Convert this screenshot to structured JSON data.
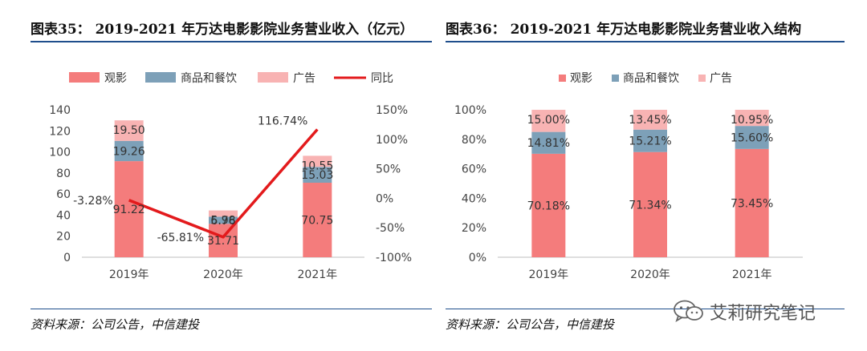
{
  "figures": {
    "left_title": "图表35： 2019-2021 年万达电影影院业务营业收入（亿元）",
    "right_title": "图表36： 2019-2021 年万达电影影院业务营业收入结构",
    "left_source": "资料来源：公司公告，中信建投",
    "right_source": "资料来源：公司公告，中信建投"
  },
  "watermark": {
    "text": "艾莉研究笔记",
    "icon": "wechat-icon"
  },
  "colors": {
    "box_office": "#f47c7c",
    "food_beverage": "#7da0b8",
    "advertising": "#f8b3b3",
    "yoy_line": "#e31a1c",
    "rule": "#1f4e8c"
  },
  "chart_data": [
    {
      "type": "bar",
      "stacked": true,
      "title": "2019-2021 年万达电影影院业务营业收入（亿元）",
      "categories": [
        "2019年",
        "2020年",
        "2021年"
      ],
      "series": [
        {
          "name": "观影",
          "values": [
            91.22,
            31.71,
            70.75
          ],
          "color": "#f47c7c"
        },
        {
          "name": "商品和餐饮",
          "values": [
            19.26,
            6.76,
            15.03
          ],
          "color": "#7da0b8"
        },
        {
          "name": "广告",
          "values": [
            19.5,
            5.98,
            10.55
          ],
          "color": "#f8b3b3"
        }
      ],
      "line_series": {
        "name": "同比",
        "values": [
          -3.28,
          -65.81,
          116.74
        ],
        "axis": "right",
        "color": "#e31a1c"
      },
      "labels": {
        "stack": [
          [
            "91.22",
            "19.26",
            "19.50"
          ],
          [
            "31.71",
            "6.76",
            "5.98"
          ],
          [
            "70.75",
            "15.03",
            "10.55"
          ]
        ],
        "yoy": [
          "-3.28%",
          "-65.81%",
          "116.74%"
        ]
      },
      "ylim": [
        0,
        140
      ],
      "yticks": [
        "0",
        "20",
        "40",
        "60",
        "80",
        "100",
        "120",
        "140"
      ],
      "y2lim": [
        -100,
        150
      ],
      "y2ticks": [
        "-100%",
        "-50%",
        "0%",
        "50%",
        "100%",
        "150%"
      ],
      "legend": "top",
      "grid": false
    },
    {
      "type": "bar",
      "stacked": true,
      "title": "2019-2021 年万达电影影院业务营业收入结构",
      "categories": [
        "2019年",
        "2020年",
        "2021年"
      ],
      "series": [
        {
          "name": "观影",
          "values": [
            70.18,
            71.34,
            73.45
          ],
          "color": "#f47c7c"
        },
        {
          "name": "商品和餐饮",
          "values": [
            14.81,
            15.21,
            15.6
          ],
          "color": "#7da0b8"
        },
        {
          "name": "广告",
          "values": [
            15.0,
            13.45,
            10.95
          ],
          "color": "#f8b3b3"
        }
      ],
      "labels": {
        "stack": [
          [
            "70.18%",
            "14.81%",
            "15.00%"
          ],
          [
            "71.34%",
            "15.21%",
            "13.45%"
          ],
          [
            "73.45%",
            "15.60%",
            "10.95%"
          ]
        ]
      },
      "ylim": [
        0,
        100
      ],
      "yticks": [
        "0%",
        "20%",
        "40%",
        "60%",
        "80%",
        "100%"
      ],
      "legend": "top",
      "grid": false
    }
  ]
}
